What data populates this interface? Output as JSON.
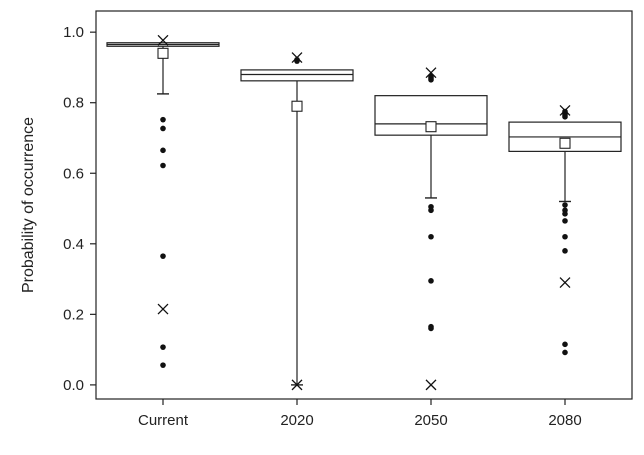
{
  "chart_data": {
    "type": "box",
    "title": "",
    "xlabel": "",
    "ylabel": "Probability of occurrence",
    "ylim": [
      -0.04,
      1.06
    ],
    "yticks": [
      0.0,
      0.2,
      0.4,
      0.6,
      0.8,
      1.0
    ],
    "ytick_labels": [
      "0.0",
      "0.2",
      "0.4",
      "0.6",
      "0.8",
      "1.0"
    ],
    "grid": false,
    "categories": [
      "Current",
      "2020",
      "2050",
      "2080"
    ],
    "boxes": [
      {
        "category": "Current",
        "q1": 0.96,
        "median": 0.965,
        "q3": 0.97,
        "mean": 0.94,
        "whisker_low": 0.825,
        "whisker_high": 0.97,
        "outliers": [
          0.752,
          0.727,
          0.665,
          0.622,
          0.365,
          0.107,
          0.056
        ],
        "extremes": [
          0.977,
          0.215
        ]
      },
      {
        "category": "2020",
        "q1": 0.862,
        "median": 0.88,
        "q3": 0.893,
        "mean": 0.79,
        "whisker_low": 0.0,
        "whisker_high": 0.893,
        "outliers": [
          0.922,
          0.918
        ],
        "extremes": [
          0.928,
          0.0
        ]
      },
      {
        "category": "2050",
        "q1": 0.708,
        "median": 0.74,
        "q3": 0.82,
        "mean": 0.732,
        "whisker_low": 0.53,
        "whisker_high": 0.82,
        "outliers": [
          0.875,
          0.87,
          0.865,
          0.505,
          0.495,
          0.42,
          0.295,
          0.165,
          0.16
        ],
        "extremes": [
          0.885,
          0.0
        ]
      },
      {
        "category": "2080",
        "q1": 0.662,
        "median": 0.703,
        "q3": 0.745,
        "mean": 0.685,
        "whisker_low": 0.52,
        "whisker_high": 0.745,
        "outliers": [
          0.775,
          0.77,
          0.765,
          0.76,
          0.51,
          0.495,
          0.485,
          0.465,
          0.42,
          0.38,
          0.115,
          0.092
        ],
        "extremes": [
          0.778,
          0.29
        ]
      }
    ]
  }
}
